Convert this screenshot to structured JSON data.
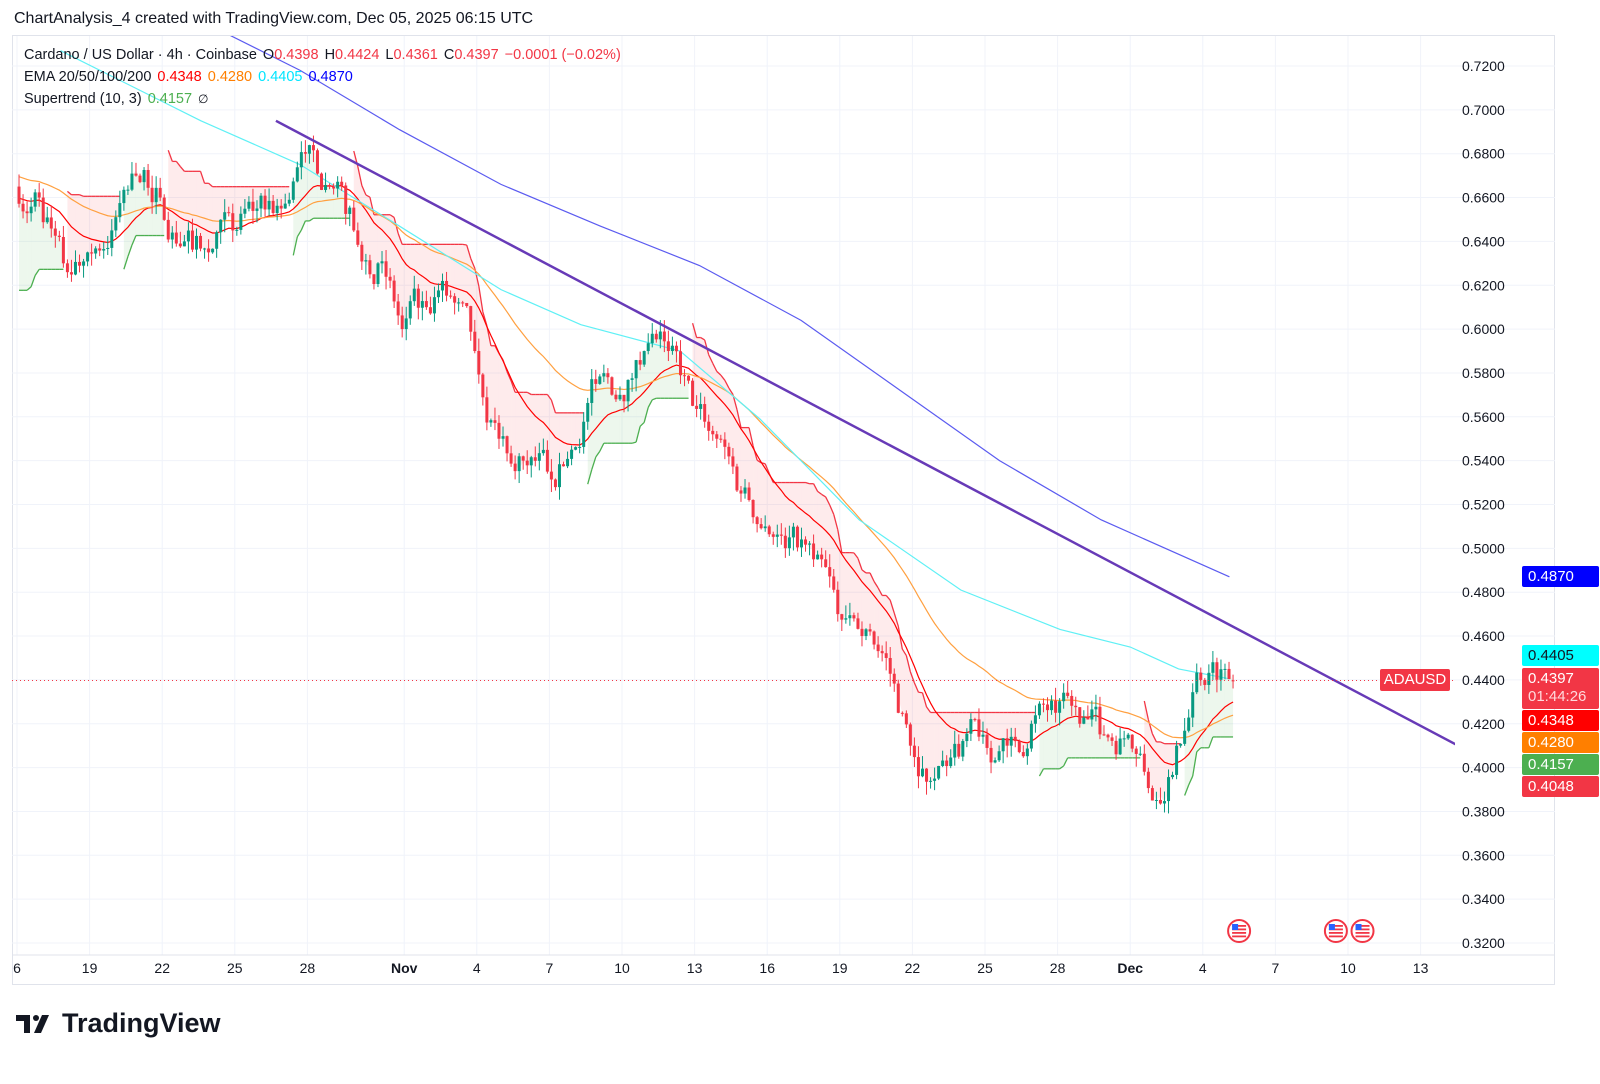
{
  "header": {
    "title": "ChartAnalysis_4 created with TradingView.com, Dec 05, 2025 06:15 UTC"
  },
  "legend": {
    "symbol": "Cardano / US Dollar · 4h · Coinbase",
    "o_label": "O",
    "o": "0.4398",
    "h_label": "H",
    "h": "0.4424",
    "l_label": "L",
    "l": "0.4361",
    "c_label": "C",
    "c": "0.4397",
    "change": "−0.0001 (−0.02%)",
    "ema_label": "EMA 20/50/100/200",
    "ema20": "0.4348",
    "ema50": "0.4280",
    "ema100": "0.4405",
    "ema200": "0.4870",
    "st_label": "Supertrend (10, 3)",
    "st": "0.4157",
    "st_icon": "∅"
  },
  "price_tags": {
    "symbol": "ADAUSD",
    "last": "0.4397",
    "countdown": "01:44:26",
    "ema200": "0.4870",
    "ema100": "0.4405",
    "ema20": "0.4348",
    "ema50": "0.4280",
    "supertrend": "0.4157",
    "other": "0.4048"
  },
  "colors": {
    "up": "#089981",
    "down": "#f23645",
    "ema20": "#ff0000",
    "ema50": "#ff7f00",
    "ema100": "#00ffff",
    "ema200": "#0000ff",
    "st_up": "#4caf50",
    "st_down": "#f23645",
    "trendline": "#673ab7"
  },
  "logo": "TradingView",
  "chart_data": {
    "type": "candlestick",
    "title": "Cardano / US Dollar · 4h · Coinbase",
    "start_date": "2025-10-16",
    "ylim": [
      0.31,
      0.73
    ],
    "y_ticks": [
      "0.3200",
      "0.3400",
      "0.3600",
      "0.3800",
      "0.4000",
      "0.4200",
      "0.4400",
      "0.4600",
      "0.4800",
      "0.5000",
      "0.5200",
      "0.5400",
      "0.5600",
      "0.5800",
      "0.6000",
      "0.6200",
      "0.6400",
      "0.6600",
      "0.6800",
      "0.7000",
      "0.7200"
    ],
    "x_ticks": [
      {
        "label": "6",
        "day": 0
      },
      {
        "label": "19",
        "day": 3
      },
      {
        "label": "22",
        "day": 6
      },
      {
        "label": "25",
        "day": 9
      },
      {
        "label": "28",
        "day": 12
      },
      {
        "label": "Nov",
        "day": 16
      },
      {
        "label": "4",
        "day": 19
      },
      {
        "label": "7",
        "day": 22
      },
      {
        "label": "10",
        "day": 25
      },
      {
        "label": "13",
        "day": 28
      },
      {
        "label": "16",
        "day": 31
      },
      {
        "label": "19",
        "day": 34
      },
      {
        "label": "22",
        "day": 37
      },
      {
        "label": "25",
        "day": 40
      },
      {
        "label": "28",
        "day": 43
      },
      {
        "label": "Dec",
        "day": 46
      },
      {
        "label": "4",
        "day": 49
      },
      {
        "label": "7",
        "day": 52
      },
      {
        "label": "10",
        "day": 55
      },
      {
        "label": "13",
        "day": 58
      }
    ],
    "daily_close": [
      0.66,
      0.63,
      0.635,
      0.645,
      0.67,
      0.66,
      0.64,
      0.635,
      0.645,
      0.655,
      0.655,
      0.68,
      0.665,
      0.645,
      0.63,
      0.6,
      0.61,
      0.615,
      0.59,
      0.55,
      0.54,
      0.535,
      0.545,
      0.575,
      0.57,
      0.59,
      0.59,
      0.565,
      0.55,
      0.525,
      0.51,
      0.505,
      0.495,
      0.47,
      0.46,
      0.45,
      0.41,
      0.395,
      0.405,
      0.415,
      0.41,
      0.42,
      0.425,
      0.42,
      0.415,
      0.415,
      0.385,
      0.41,
      0.44,
      0.445,
      0.4397
    ],
    "last_bar": {
      "open": 0.4398,
      "high": 0.4424,
      "low": 0.4361,
      "close": 0.4397
    },
    "ema100": [
      {
        "day": 1.8,
        "value": 0.727
      },
      {
        "day": 7.6,
        "value": 0.695
      },
      {
        "day": 11.7,
        "value": 0.675
      },
      {
        "day": 15.8,
        "value": 0.647
      },
      {
        "day": 20,
        "value": 0.618
      },
      {
        "day": 23.3,
        "value": 0.602
      },
      {
        "day": 27.4,
        "value": 0.59
      },
      {
        "day": 30.7,
        "value": 0.559
      },
      {
        "day": 34.8,
        "value": 0.513
      },
      {
        "day": 39,
        "value": 0.481
      },
      {
        "day": 43.1,
        "value": 0.463
      },
      {
        "day": 46,
        "value": 0.455
      },
      {
        "day": 48,
        "value": 0.445
      },
      {
        "day": 50.1,
        "value": 0.4405
      }
    ],
    "ema200": [
      {
        "day": 8.8,
        "value": 0.734
      },
      {
        "day": 11.7,
        "value": 0.718
      },
      {
        "day": 15.8,
        "value": 0.691
      },
      {
        "day": 20,
        "value": 0.666
      },
      {
        "day": 24.1,
        "value": 0.647
      },
      {
        "day": 28.2,
        "value": 0.629
      },
      {
        "day": 32.4,
        "value": 0.604
      },
      {
        "day": 36.5,
        "value": 0.572
      },
      {
        "day": 40.6,
        "value": 0.54
      },
      {
        "day": 44.8,
        "value": 0.513
      },
      {
        "day": 50.1,
        "value": 0.487
      }
    ],
    "trendline": [
      {
        "day": 10.7,
        "value": 0.695
      },
      {
        "day": 59.5,
        "value": 0.4103
      }
    ],
    "event_days": [
      50.5,
      54.5,
      55.6
    ]
  }
}
